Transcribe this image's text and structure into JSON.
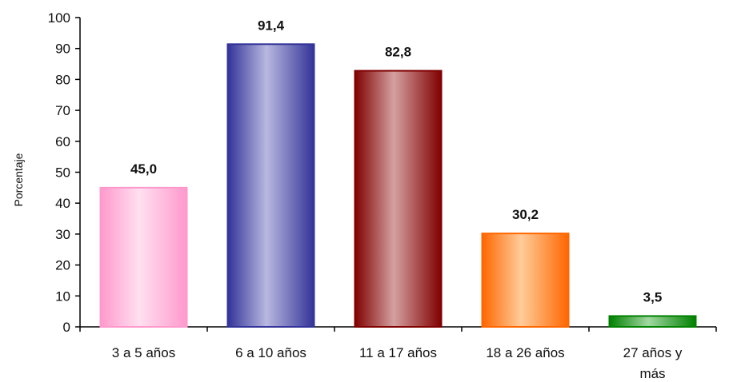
{
  "chart_data": {
    "type": "bar",
    "title": "",
    "xlabel": "",
    "ylabel": "Porcentaje",
    "ylim": [
      0,
      100
    ],
    "yticks": [
      0,
      10,
      20,
      30,
      40,
      50,
      60,
      70,
      80,
      90,
      100
    ],
    "categories": [
      "3 a 5 años",
      "6 a 10 años",
      "11 a 17 años",
      "18 a 26 años",
      "27 años y más"
    ],
    "category_lines": [
      [
        "3 a 5 años"
      ],
      [
        "6 a 10 años"
      ],
      [
        "11 a 17 años"
      ],
      [
        "18 a 26 años"
      ],
      [
        "27 años y",
        "más"
      ]
    ],
    "values": [
      45.0,
      91.4,
      82.8,
      30.2,
      3.5
    ],
    "value_labels": [
      "45,0",
      "91,4",
      "82,8",
      "30,2",
      "3,5"
    ],
    "colors": [
      {
        "edge": "#ff99cc",
        "mid": "#ffe0f0"
      },
      {
        "edge": "#333399",
        "mid": "#b8b8e0"
      },
      {
        "edge": "#800000",
        "mid": "#d4a0a0"
      },
      {
        "edge": "#ff6600",
        "mid": "#ffcc99"
      },
      {
        "edge": "#008000",
        "mid": "#a0d8a0"
      }
    ],
    "grid": false,
    "legend": "none"
  }
}
